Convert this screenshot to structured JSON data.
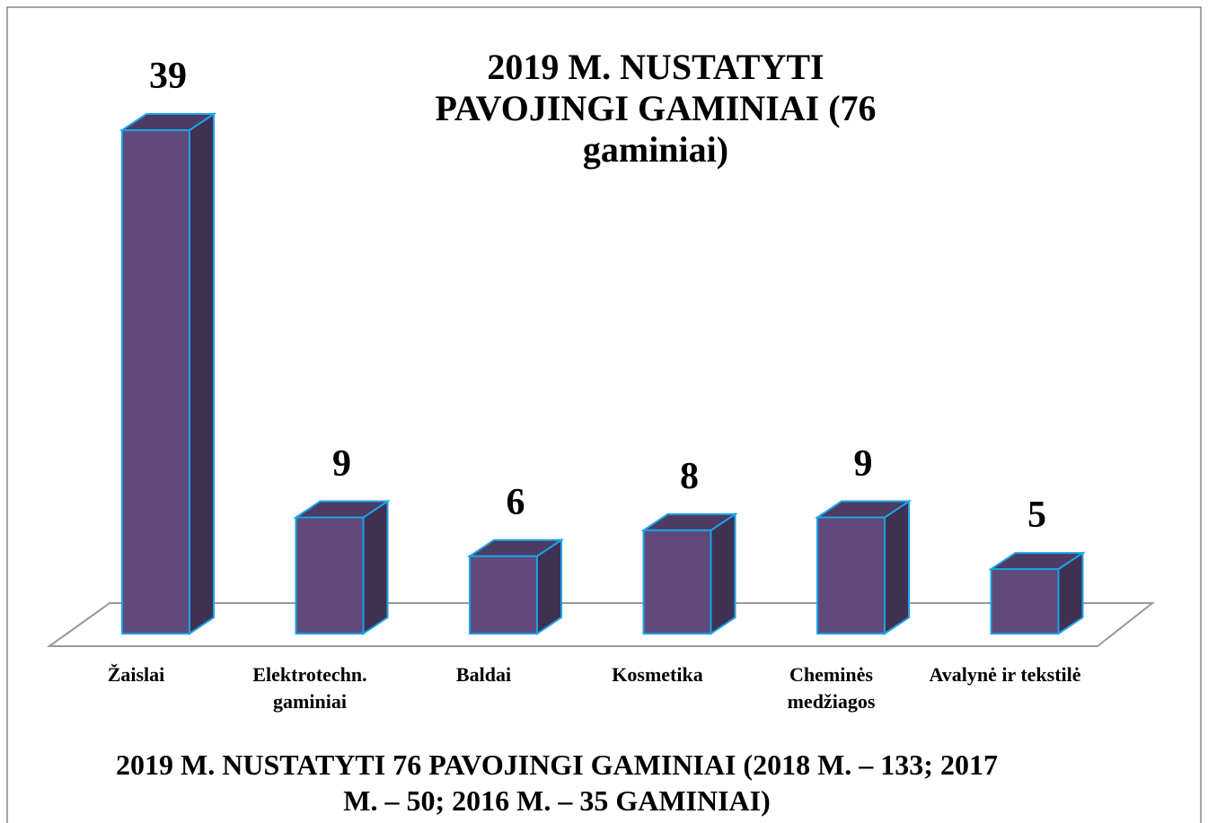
{
  "chart_data": {
    "type": "bar3d",
    "title": "2019 M. NUSTATYTI PAVOJINGI GAMINIAI (76 gaminiai)",
    "subtitle": "2019 M.  NUSTATYTI 76 PAVOJINGI GAMINIAI (2018 M. – 133; 2017 M. – 50; 2016 M. – 35 GAMINIAI)",
    "categories": [
      "Žaislai",
      "Elektrotechn. gaminiai",
      "Baldai",
      "Kosmetika",
      "Cheminės medžiagos",
      "Avalynė ir tekstilė"
    ],
    "values": [
      39,
      9,
      6,
      8,
      9,
      5
    ],
    "color": "#5f4a7a"
  }
}
